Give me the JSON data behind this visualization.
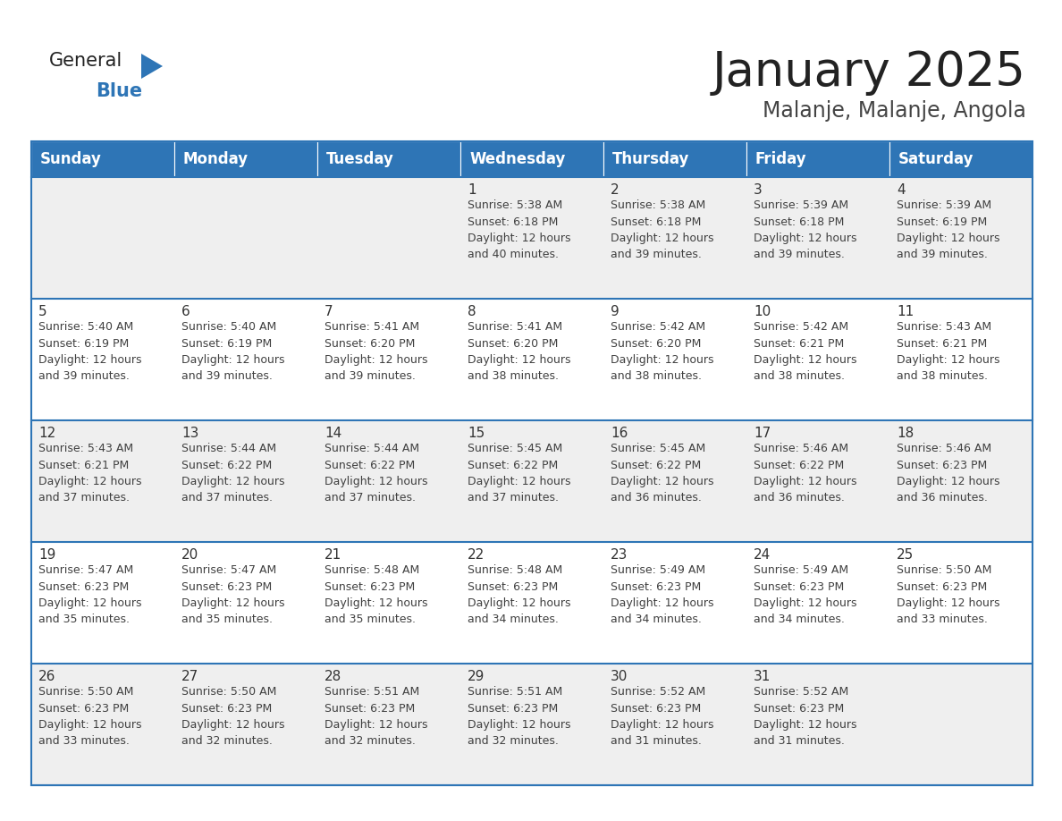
{
  "title": "January 2025",
  "subtitle": "Malanje, Malanje, Angola",
  "days_of_week": [
    "Sunday",
    "Monday",
    "Tuesday",
    "Wednesday",
    "Thursday",
    "Friday",
    "Saturday"
  ],
  "header_bg": "#2E75B6",
  "header_text": "#FFFFFF",
  "row_bg_even": "#EFEFEF",
  "row_bg_odd": "#FFFFFF",
  "cell_text_color": "#404040",
  "day_num_color": "#333333",
  "separator_color": "#2E75B6",
  "calendar_data": [
    [
      {
        "day": null,
        "sunrise": null,
        "sunset": null,
        "daylight": null
      },
      {
        "day": null,
        "sunrise": null,
        "sunset": null,
        "daylight": null
      },
      {
        "day": null,
        "sunrise": null,
        "sunset": null,
        "daylight": null
      },
      {
        "day": 1,
        "sunrise": "5:38 AM",
        "sunset": "6:18 PM",
        "daylight": "12 hours\nand 40 minutes."
      },
      {
        "day": 2,
        "sunrise": "5:38 AM",
        "sunset": "6:18 PM",
        "daylight": "12 hours\nand 39 minutes."
      },
      {
        "day": 3,
        "sunrise": "5:39 AM",
        "sunset": "6:18 PM",
        "daylight": "12 hours\nand 39 minutes."
      },
      {
        "day": 4,
        "sunrise": "5:39 AM",
        "sunset": "6:19 PM",
        "daylight": "12 hours\nand 39 minutes."
      }
    ],
    [
      {
        "day": 5,
        "sunrise": "5:40 AM",
        "sunset": "6:19 PM",
        "daylight": "12 hours\nand 39 minutes."
      },
      {
        "day": 6,
        "sunrise": "5:40 AM",
        "sunset": "6:19 PM",
        "daylight": "12 hours\nand 39 minutes."
      },
      {
        "day": 7,
        "sunrise": "5:41 AM",
        "sunset": "6:20 PM",
        "daylight": "12 hours\nand 39 minutes."
      },
      {
        "day": 8,
        "sunrise": "5:41 AM",
        "sunset": "6:20 PM",
        "daylight": "12 hours\nand 38 minutes."
      },
      {
        "day": 9,
        "sunrise": "5:42 AM",
        "sunset": "6:20 PM",
        "daylight": "12 hours\nand 38 minutes."
      },
      {
        "day": 10,
        "sunrise": "5:42 AM",
        "sunset": "6:21 PM",
        "daylight": "12 hours\nand 38 minutes."
      },
      {
        "day": 11,
        "sunrise": "5:43 AM",
        "sunset": "6:21 PM",
        "daylight": "12 hours\nand 38 minutes."
      }
    ],
    [
      {
        "day": 12,
        "sunrise": "5:43 AM",
        "sunset": "6:21 PM",
        "daylight": "12 hours\nand 37 minutes."
      },
      {
        "day": 13,
        "sunrise": "5:44 AM",
        "sunset": "6:22 PM",
        "daylight": "12 hours\nand 37 minutes."
      },
      {
        "day": 14,
        "sunrise": "5:44 AM",
        "sunset": "6:22 PM",
        "daylight": "12 hours\nand 37 minutes."
      },
      {
        "day": 15,
        "sunrise": "5:45 AM",
        "sunset": "6:22 PM",
        "daylight": "12 hours\nand 37 minutes."
      },
      {
        "day": 16,
        "sunrise": "5:45 AM",
        "sunset": "6:22 PM",
        "daylight": "12 hours\nand 36 minutes."
      },
      {
        "day": 17,
        "sunrise": "5:46 AM",
        "sunset": "6:22 PM",
        "daylight": "12 hours\nand 36 minutes."
      },
      {
        "day": 18,
        "sunrise": "5:46 AM",
        "sunset": "6:23 PM",
        "daylight": "12 hours\nand 36 minutes."
      }
    ],
    [
      {
        "day": 19,
        "sunrise": "5:47 AM",
        "sunset": "6:23 PM",
        "daylight": "12 hours\nand 35 minutes."
      },
      {
        "day": 20,
        "sunrise": "5:47 AM",
        "sunset": "6:23 PM",
        "daylight": "12 hours\nand 35 minutes."
      },
      {
        "day": 21,
        "sunrise": "5:48 AM",
        "sunset": "6:23 PM",
        "daylight": "12 hours\nand 35 minutes."
      },
      {
        "day": 22,
        "sunrise": "5:48 AM",
        "sunset": "6:23 PM",
        "daylight": "12 hours\nand 34 minutes."
      },
      {
        "day": 23,
        "sunrise": "5:49 AM",
        "sunset": "6:23 PM",
        "daylight": "12 hours\nand 34 minutes."
      },
      {
        "day": 24,
        "sunrise": "5:49 AM",
        "sunset": "6:23 PM",
        "daylight": "12 hours\nand 34 minutes."
      },
      {
        "day": 25,
        "sunrise": "5:50 AM",
        "sunset": "6:23 PM",
        "daylight": "12 hours\nand 33 minutes."
      }
    ],
    [
      {
        "day": 26,
        "sunrise": "5:50 AM",
        "sunset": "6:23 PM",
        "daylight": "12 hours\nand 33 minutes."
      },
      {
        "day": 27,
        "sunrise": "5:50 AM",
        "sunset": "6:23 PM",
        "daylight": "12 hours\nand 32 minutes."
      },
      {
        "day": 28,
        "sunrise": "5:51 AM",
        "sunset": "6:23 PM",
        "daylight": "12 hours\nand 32 minutes."
      },
      {
        "day": 29,
        "sunrise": "5:51 AM",
        "sunset": "6:23 PM",
        "daylight": "12 hours\nand 32 minutes."
      },
      {
        "day": 30,
        "sunrise": "5:52 AM",
        "sunset": "6:23 PM",
        "daylight": "12 hours\nand 31 minutes."
      },
      {
        "day": 31,
        "sunrise": "5:52 AM",
        "sunset": "6:23 PM",
        "daylight": "12 hours\nand 31 minutes."
      },
      {
        "day": null,
        "sunrise": null,
        "sunset": null,
        "daylight": null
      }
    ]
  ],
  "logo_general_color": "#222222",
  "logo_blue_color": "#2E75B6",
  "title_fontsize": 38,
  "subtitle_fontsize": 17,
  "header_fontsize": 12,
  "day_num_fontsize": 11,
  "cell_fontsize": 9.0
}
